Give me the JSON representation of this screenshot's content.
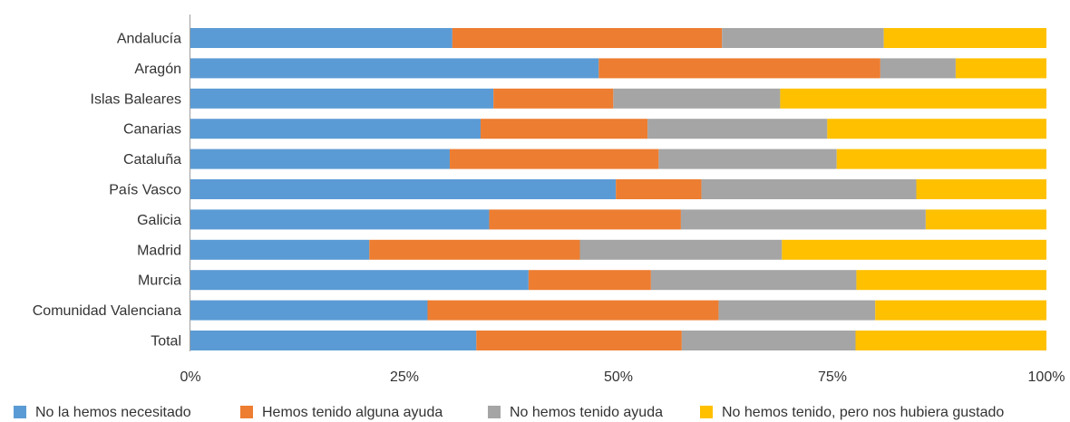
{
  "chart_data": {
    "type": "bar",
    "orientation": "horizontal",
    "stacked": true,
    "percent_stacked": true,
    "title": "",
    "xlabel": "",
    "ylabel": "",
    "xlim": [
      0,
      100
    ],
    "grid": false,
    "legend_position": "bottom",
    "categories": [
      "Andalucía",
      "Aragón",
      "Islas Baleares",
      "Canarias",
      "Cataluña",
      "País Vasco",
      "Galicia",
      "Madrid",
      "Murcia",
      "Comunidad Valenciana",
      "Total"
    ],
    "tick_labels": [
      "0%",
      "25%",
      "50%",
      "75%",
      "100%"
    ],
    "tick_values": [
      0,
      25,
      50,
      75,
      100
    ],
    "series": [
      {
        "name": "No la hemos necesitado",
        "color": "#5b9bd5",
        "values": [
          30.6,
          47.7,
          35.4,
          33.9,
          30.3,
          49.7,
          34.9,
          20.9,
          39.5,
          27.7,
          33.4
        ]
      },
      {
        "name": "Hemos tenido alguna ayuda",
        "color": "#ed7d31",
        "values": [
          31.5,
          32.9,
          14.0,
          19.5,
          24.4,
          10.0,
          22.4,
          24.6,
          14.3,
          34.0,
          24.0
        ]
      },
      {
        "name": "No hemos tenido ayuda",
        "color": "#a5a5a5",
        "values": [
          18.9,
          8.8,
          19.5,
          21.0,
          20.8,
          25.1,
          28.6,
          23.6,
          24.0,
          18.3,
          20.3
        ]
      },
      {
        "name": "No hemos tenido, pero nos hubiera gustado",
        "color": "#ffc000",
        "values": [
          19.0,
          10.6,
          31.1,
          25.6,
          24.5,
          15.2,
          14.1,
          30.9,
          22.2,
          20.0,
          22.3
        ]
      }
    ]
  }
}
